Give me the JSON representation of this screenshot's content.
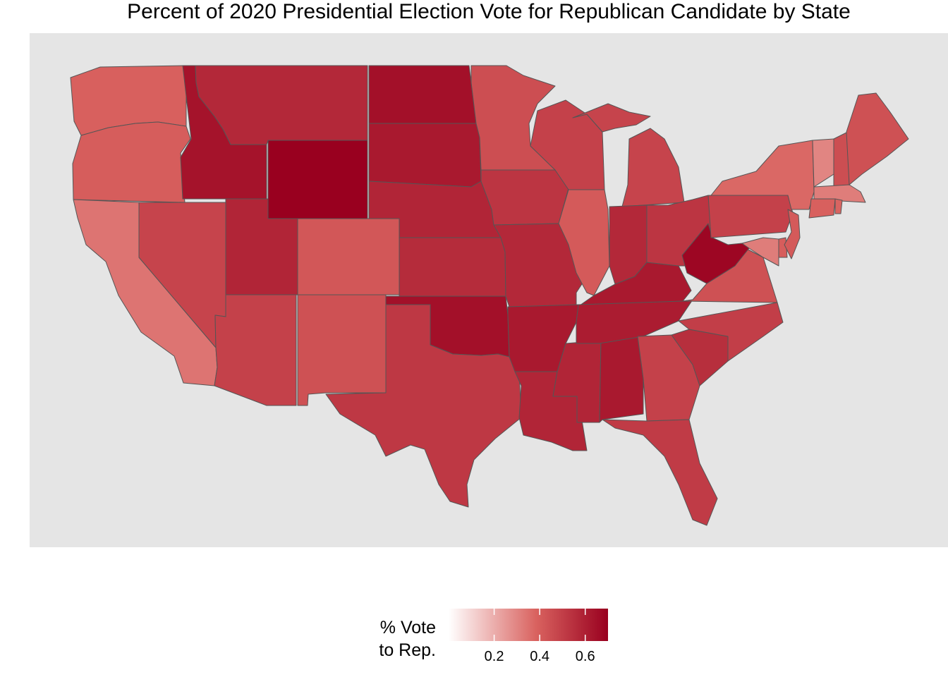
{
  "title": "Percent of 2020 Presidential Election Vote for Republican Candidate by State",
  "colors": {
    "panel_background": "#e5e5e5",
    "scale_low": "#ffffff",
    "scale_high": "#99001f",
    "state_border": "#555555"
  },
  "legend": {
    "title_line1": "% Vote",
    "title_line2": "to Rep.",
    "min": 0.0,
    "max": 0.7,
    "ticks": [
      "0.2",
      "0.4",
      "0.6"
    ],
    "tick_values": [
      0.2,
      0.4,
      0.6
    ]
  },
  "map_data": {
    "type": "choropleth",
    "variable": "Republican share of vote",
    "states": {
      "WA": 0.39,
      "OR": 0.4,
      "CA": 0.34,
      "NV": 0.48,
      "ID": 0.64,
      "MT": 0.57,
      "WY": 0.7,
      "UT": 0.58,
      "AZ": 0.49,
      "CO": 0.42,
      "NM": 0.44,
      "ND": 0.65,
      "SD": 0.62,
      "NE": 0.58,
      "KS": 0.56,
      "OK": 0.65,
      "TX": 0.52,
      "MN": 0.45,
      "IA": 0.53,
      "MO": 0.57,
      "AR": 0.62,
      "LA": 0.58,
      "WI": 0.49,
      "IL": 0.41,
      "MS": 0.58,
      "AL": 0.62,
      "MI": 0.48,
      "IN": 0.57,
      "KY": 0.62,
      "TN": 0.61,
      "OH": 0.53,
      "GA": 0.49,
      "FL": 0.51,
      "SC": 0.55,
      "NC": 0.5,
      "VA": 0.44,
      "WV": 0.68,
      "PA": 0.49,
      "NY": 0.37,
      "VT": 0.3,
      "NH": 0.45,
      "ME": 0.44,
      "MA": 0.32,
      "CT": 0.39,
      "RI": 0.38,
      "NJ": 0.41,
      "DE": 0.4,
      "MD": 0.32
    }
  }
}
